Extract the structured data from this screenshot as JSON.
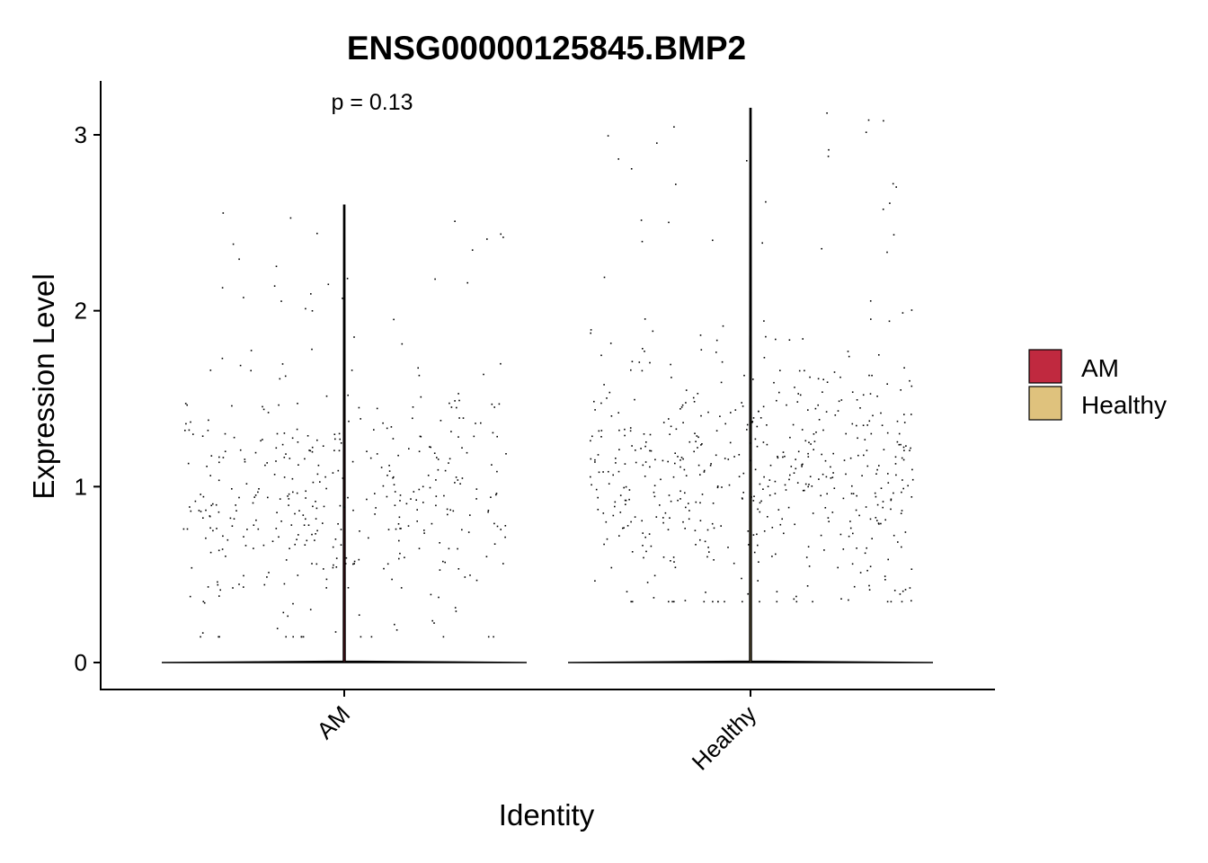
{
  "chart_data": {
    "type": "violin",
    "title": "ENSG00000125845.BMP2",
    "xlabel": "Identity",
    "ylabel": "Expression Level",
    "categories": [
      "AM",
      "Healthy"
    ],
    "ylim": [
      -0.15,
      3.3
    ],
    "yticks": [
      0,
      1,
      2,
      3
    ],
    "annotation": "p = 0.13",
    "series": [
      {
        "name": "AM",
        "color": "#C0293F",
        "violin_max": 2.6,
        "point_count": 420,
        "point_range": [
          0.15,
          2.6
        ],
        "point_median": 0.9
      },
      {
        "name": "Healthy",
        "color": "#DFC27D",
        "violin_max": 3.15,
        "point_count": 560,
        "point_range": [
          0.35,
          3.15
        ],
        "point_median": 1.05
      }
    ],
    "legend": {
      "position": "right",
      "entries": [
        "AM",
        "Healthy"
      ]
    },
    "grid": false
  }
}
